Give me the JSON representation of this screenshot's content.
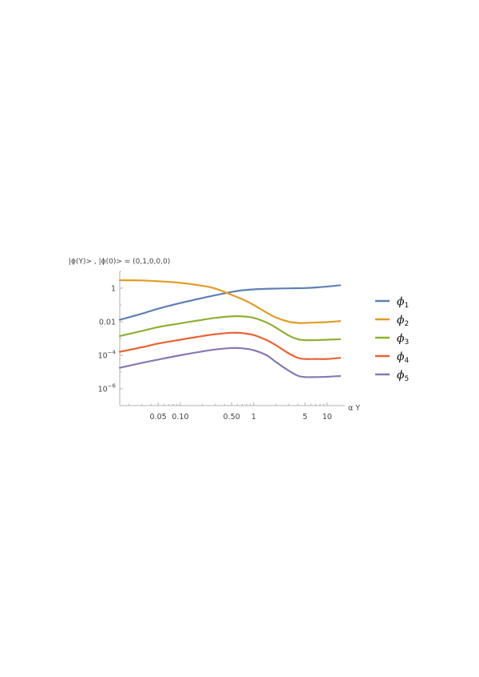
{
  "chart_data": {
    "type": "line",
    "title": "|ϕ(Y)> , |ϕ(0)> = (0,1,0,0,0)",
    "xlabel": "α Y",
    "ylabel": "",
    "x_scale": "log",
    "y_scale": "log",
    "xlim": [
      0.015,
      15
    ],
    "ylim": [
      1e-07,
      10
    ],
    "x_ticks": [
      {
        "value": 0.05,
        "label": "0.05"
      },
      {
        "value": 0.1,
        "label": "0.10"
      },
      {
        "value": 0.5,
        "label": "0.50"
      },
      {
        "value": 1,
        "label": "1"
      },
      {
        "value": 5,
        "label": "5"
      },
      {
        "value": 10,
        "label": "10"
      }
    ],
    "y_ticks": [
      {
        "value": 1,
        "label": "1",
        "exp": ""
      },
      {
        "value": 0.01,
        "label": "0.01",
        "exp": ""
      },
      {
        "value": 0.0001,
        "label": "10",
        "exp": "−4"
      },
      {
        "value": 1e-06,
        "label": "10",
        "exp": "−6"
      }
    ],
    "legend_position": "right",
    "series": [
      {
        "name": "ϕ",
        "sub": "1",
        "color": "#5e81b5",
        "x": [
          0.015,
          0.03,
          0.05,
          0.1,
          0.2,
          0.3,
          0.5,
          0.7,
          1,
          1.5,
          2,
          3,
          4,
          5,
          7,
          10,
          15
        ],
        "y": [
          0.013,
          0.03,
          0.06,
          0.13,
          0.26,
          0.38,
          0.6,
          0.75,
          0.85,
          0.92,
          0.95,
          0.98,
          1.0,
          1.02,
          1.1,
          1.25,
          1.5
        ]
      },
      {
        "name": "ϕ",
        "sub": "2",
        "color": "#e19c24",
        "x": [
          0.015,
          0.03,
          0.05,
          0.1,
          0.2,
          0.3,
          0.5,
          0.7,
          1,
          1.5,
          2,
          3,
          4,
          5,
          7,
          10,
          15
        ],
        "y": [
          3.0,
          2.9,
          2.6,
          2.1,
          1.4,
          0.95,
          0.4,
          0.22,
          0.1,
          0.035,
          0.018,
          0.01,
          0.0085,
          0.0085,
          0.009,
          0.0095,
          0.011
        ]
      },
      {
        "name": "ϕ",
        "sub": "3",
        "color": "#8fb032",
        "x": [
          0.015,
          0.03,
          0.05,
          0.1,
          0.2,
          0.3,
          0.5,
          0.7,
          1,
          1.5,
          2,
          3,
          4,
          5,
          7,
          10,
          15
        ],
        "y": [
          0.0014,
          0.0028,
          0.0048,
          0.008,
          0.013,
          0.017,
          0.021,
          0.021,
          0.017,
          0.009,
          0.0045,
          0.0015,
          0.0009,
          0.0008,
          0.0008,
          0.00085,
          0.0009
        ]
      },
      {
        "name": "ϕ",
        "sub": "4",
        "color": "#eb6235",
        "x": [
          0.015,
          0.03,
          0.05,
          0.1,
          0.2,
          0.3,
          0.5,
          0.7,
          1,
          1.5,
          2,
          3,
          4,
          5,
          7,
          10,
          15
        ],
        "y": [
          0.00016,
          0.0003,
          0.0005,
          0.00085,
          0.0014,
          0.0018,
          0.0022,
          0.0021,
          0.0016,
          0.0008,
          0.0004,
          0.00013,
          7e-05,
          6e-05,
          6e-05,
          6e-05,
          7e-05
        ]
      },
      {
        "name": "ϕ",
        "sub": "5",
        "color": "#8778b3",
        "x": [
          0.015,
          0.03,
          0.05,
          0.1,
          0.2,
          0.3,
          0.5,
          0.7,
          1,
          1.5,
          2,
          3,
          4,
          5,
          7,
          10,
          15
        ],
        "y": [
          1.8e-05,
          3.5e-05,
          5.5e-05,
          0.0001,
          0.00017,
          0.00022,
          0.00027,
          0.00026,
          0.0002,
          0.0001,
          4e-05,
          1.2e-05,
          6e-06,
          5e-06,
          5e-06,
          5.2e-06,
          5.8e-06
        ]
      }
    ]
  }
}
